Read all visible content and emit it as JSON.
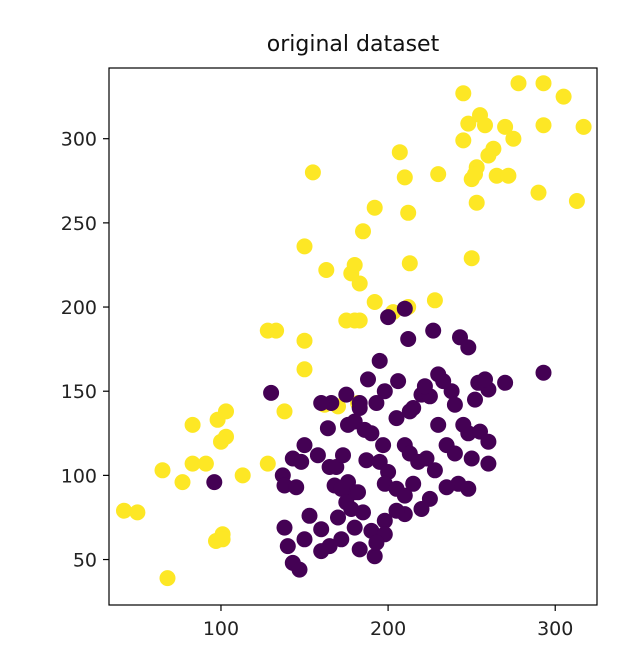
{
  "chart_data": {
    "type": "scatter",
    "title": "original dataset",
    "xlabel": "",
    "ylabel": "",
    "xlim": [
      33,
      325
    ],
    "ylim": [
      23,
      342
    ],
    "xticks": [
      100,
      200,
      300
    ],
    "yticks": [
      50,
      100,
      150,
      200,
      250,
      300
    ],
    "grid": false,
    "colors": {
      "class_0": "#440154",
      "class_1": "#FDE725",
      "axes": "#000000"
    },
    "series": [
      {
        "color": "#FDE725",
        "points": [
          [
            245,
            327
          ],
          [
            278,
            333
          ],
          [
            293,
            333
          ],
          [
            305,
            325
          ],
          [
            255,
            314
          ],
          [
            258,
            308
          ],
          [
            248,
            309
          ],
          [
            270,
            307
          ],
          [
            275,
            300
          ],
          [
            245,
            299
          ],
          [
            317,
            307
          ],
          [
            293,
            308
          ],
          [
            260,
            290
          ],
          [
            263,
            294
          ],
          [
            207,
            292
          ],
          [
            253,
            283
          ],
          [
            250,
            276
          ],
          [
            252,
            279
          ],
          [
            265,
            278
          ],
          [
            272,
            278
          ],
          [
            210,
            277
          ],
          [
            230,
            279
          ],
          [
            155,
            280
          ],
          [
            290,
            268
          ],
          [
            313,
            263
          ],
          [
            253,
            262
          ],
          [
            192,
            259
          ],
          [
            212,
            256
          ],
          [
            185,
            245
          ],
          [
            150,
            236
          ],
          [
            163,
            222
          ],
          [
            250,
            229
          ],
          [
            213,
            226
          ],
          [
            178,
            220
          ],
          [
            183,
            214
          ],
          [
            180,
            225
          ],
          [
            192,
            203
          ],
          [
            212,
            200
          ],
          [
            203,
            197
          ],
          [
            228,
            204
          ],
          [
            175,
            192
          ],
          [
            180,
            192
          ],
          [
            183,
            192
          ],
          [
            128,
            186
          ],
          [
            133,
            186
          ],
          [
            150,
            180
          ],
          [
            150,
            163
          ],
          [
            170,
            141
          ],
          [
            182,
            143
          ],
          [
            162,
            142
          ],
          [
            138,
            138
          ],
          [
            103,
            138
          ],
          [
            103,
            123
          ],
          [
            83,
            130
          ],
          [
            98,
            133
          ],
          [
            100,
            120
          ],
          [
            83,
            107
          ],
          [
            91,
            107
          ],
          [
            65,
            103
          ],
          [
            113,
            100
          ],
          [
            77,
            96
          ],
          [
            128,
            107
          ],
          [
            42,
            79
          ],
          [
            50,
            78
          ],
          [
            101,
            65
          ],
          [
            97,
            61
          ],
          [
            101,
            62
          ],
          [
            68,
            39
          ]
        ]
      },
      {
        "color": "#440154",
        "points": [
          [
            210,
            199
          ],
          [
            200,
            194
          ],
          [
            227,
            186
          ],
          [
            243,
            182
          ],
          [
            248,
            176
          ],
          [
            212,
            181
          ],
          [
            195,
            168
          ],
          [
            230,
            160
          ],
          [
            293,
            161
          ],
          [
            270,
            155
          ],
          [
            254,
            155
          ],
          [
            260,
            151
          ],
          [
            258,
            157
          ],
          [
            238,
            150
          ],
          [
            130,
            149
          ],
          [
            175,
            148
          ],
          [
            188,
            157
          ],
          [
            183,
            143
          ],
          [
            206,
            156
          ],
          [
            215,
            140
          ],
          [
            220,
            148
          ],
          [
            225,
            147
          ],
          [
            233,
            156
          ],
          [
            240,
            142
          ],
          [
            252,
            145
          ],
          [
            222,
            153
          ],
          [
            166,
            143
          ],
          [
            160,
            143
          ],
          [
            183,
            140
          ],
          [
            193,
            143
          ],
          [
            198,
            150
          ],
          [
            205,
            134
          ],
          [
            213,
            138
          ],
          [
            230,
            130
          ],
          [
            248,
            125
          ],
          [
            255,
            126
          ],
          [
            260,
            120
          ],
          [
            245,
            130
          ],
          [
            190,
            125
          ],
          [
            197,
            118
          ],
          [
            176,
            130
          ],
          [
            180,
            132
          ],
          [
            186,
            127
          ],
          [
            164,
            128
          ],
          [
            150,
            118
          ],
          [
            158,
            112
          ],
          [
            143,
            110
          ],
          [
            148,
            108
          ],
          [
            137,
            100
          ],
          [
            138,
            94
          ],
          [
            165,
            105
          ],
          [
            169,
            105
          ],
          [
            173,
            112
          ],
          [
            176,
            96
          ],
          [
            180,
            90
          ],
          [
            187,
            109
          ],
          [
            195,
            108
          ],
          [
            200,
            102
          ],
          [
            210,
            118
          ],
          [
            213,
            113
          ],
          [
            218,
            108
          ],
          [
            223,
            110
          ],
          [
            228,
            103
          ],
          [
            235,
            118
          ],
          [
            240,
            113
          ],
          [
            250,
            110
          ],
          [
            260,
            107
          ],
          [
            242,
            95
          ],
          [
            248,
            92
          ],
          [
            168,
            94
          ],
          [
            172,
            92
          ],
          [
            175,
            84
          ],
          [
            182,
            90
          ],
          [
            185,
            78
          ],
          [
            178,
            80
          ],
          [
            170,
            75
          ],
          [
            198,
            95
          ],
          [
            205,
            92
          ],
          [
            210,
            88
          ],
          [
            215,
            95
          ],
          [
            225,
            86
          ],
          [
            235,
            93
          ],
          [
            220,
            80
          ],
          [
            210,
            77
          ],
          [
            205,
            79
          ],
          [
            198,
            73
          ],
          [
            190,
            67
          ],
          [
            180,
            69
          ],
          [
            172,
            62
          ],
          [
            165,
            58
          ],
          [
            150,
            62
          ],
          [
            160,
            55
          ],
          [
            143,
            48
          ],
          [
            140,
            58
          ],
          [
            147,
            44
          ],
          [
            183,
            56
          ],
          [
            192,
            52
          ],
          [
            198,
            65
          ],
          [
            145,
            93
          ],
          [
            138,
            69
          ],
          [
            153,
            76
          ],
          [
            160,
            68
          ],
          [
            96,
            96
          ],
          [
            193,
            60
          ]
        ]
      }
    ]
  }
}
